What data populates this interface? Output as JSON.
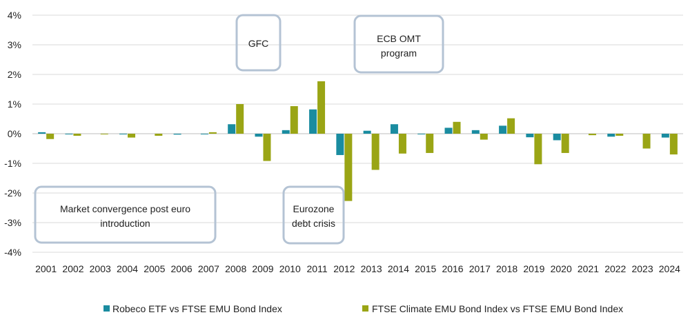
{
  "chart_data": {
    "type": "bar",
    "title": "",
    "xlabel": "",
    "ylabel": "",
    "ylim": [
      -4,
      4
    ],
    "yticks": [
      4,
      3,
      2,
      1,
      0,
      -1,
      -2,
      -3,
      -4
    ],
    "ytick_labels": [
      "4%",
      "3%",
      "2%",
      "1%",
      "0%",
      "-1%",
      "-2%",
      "-3%",
      "-4%"
    ],
    "grid": "horizontal",
    "legend_position": "bottom",
    "categories": [
      "2001",
      "2002",
      "2003",
      "2004",
      "2005",
      "2006",
      "2007",
      "2008",
      "2009",
      "2010",
      "2011",
      "2012",
      "2013",
      "2014",
      "2015",
      "2016",
      "2017",
      "2018",
      "2019",
      "2020",
      "2021",
      "2022",
      "2023",
      "2024"
    ],
    "series": [
      {
        "name": "Robeco ETF vs FTSE EMU Bond Index",
        "color": "#1a8ca0",
        "values": [
          0.05,
          -0.02,
          0.0,
          -0.02,
          0.0,
          -0.03,
          -0.02,
          0.32,
          -0.1,
          0.12,
          0.82,
          -0.72,
          0.1,
          0.32,
          -0.02,
          0.2,
          0.12,
          0.27,
          -0.12,
          -0.22,
          0.0,
          -0.1,
          0.0,
          -0.13
        ]
      },
      {
        "name": "FTSE Climate EMU Bond Index vs FTSE EMU Bond Index",
        "color": "#9aa515",
        "values": [
          -0.18,
          -0.07,
          -0.02,
          -0.13,
          -0.07,
          0.0,
          0.05,
          1.0,
          -0.92,
          0.93,
          1.77,
          -2.27,
          -1.22,
          -0.67,
          -0.65,
          0.4,
          -0.2,
          0.52,
          -1.03,
          -0.65,
          -0.05,
          -0.07,
          -0.5,
          -0.7
        ]
      }
    ],
    "annotations": [
      {
        "id": "gfc",
        "text_lines": [
          "GFC"
        ]
      },
      {
        "id": "ecb-omt",
        "text_lines": [
          "ECB OMT",
          "program"
        ]
      },
      {
        "id": "market-convergence",
        "text_lines": [
          "Market convergence post euro",
          "introduction"
        ]
      },
      {
        "id": "eurozone-debt-crisis",
        "text_lines": [
          "Eurozone",
          "debt crisis"
        ]
      }
    ]
  }
}
